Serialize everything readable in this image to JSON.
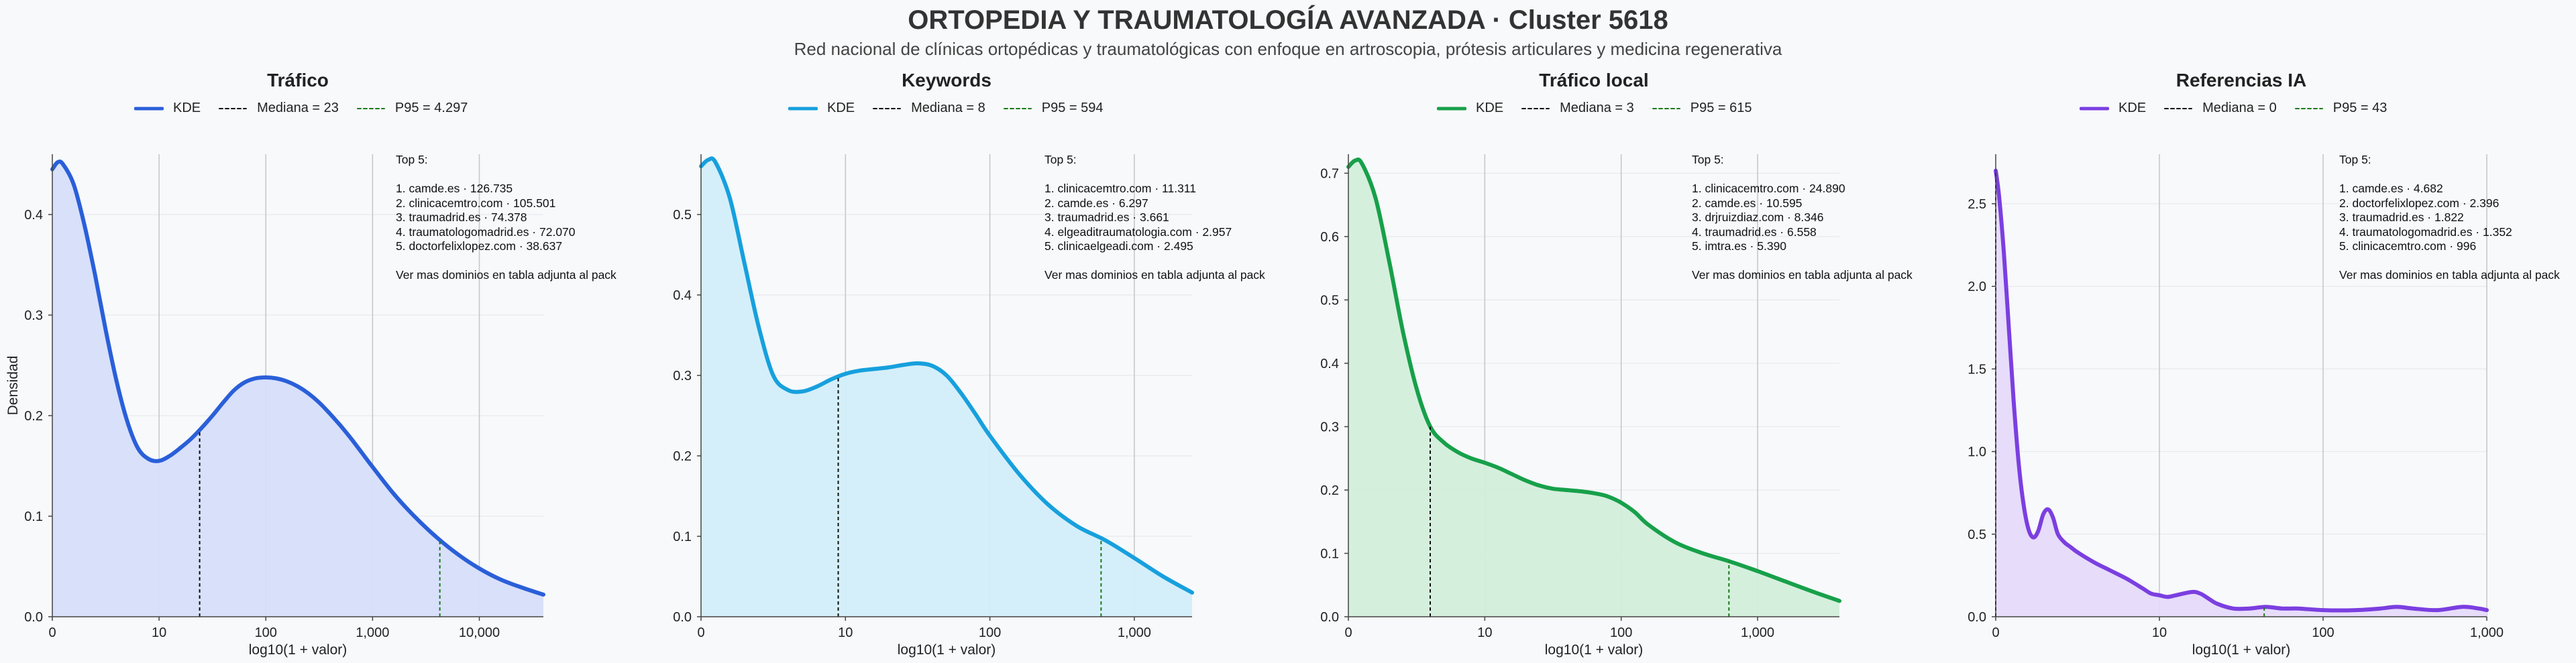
{
  "header": {
    "title": "ORTOPEDIA Y TRAUMATOLOGÍA AVANZADA · Cluster 5618",
    "subtitle": "Red nacional de clínicas ortopédicas y traumatológicas con enfoque en artroscopia, prótesis articulares y medicina regenerativa"
  },
  "legend_kde": "KDE",
  "x_axis_label": "log10(1 + valor)",
  "y_axis_label": "Densidad",
  "top_header": "Top 5:",
  "top_footer": "Ver mas dominios en tabla adjunta al pack",
  "chart_data": [
    {
      "type": "area",
      "title": "Tráfico",
      "color": "#2a5fd9",
      "fill": "#d6defa",
      "xlabel": "log10(1 + valor)",
      "ylabel": "Densidad",
      "xlim": [
        0,
        4.6
      ],
      "ylim": [
        0,
        0.46
      ],
      "x_ticks": [
        0,
        1,
        2,
        3,
        4
      ],
      "x_tick_labels": [
        "0",
        "10",
        "100",
        "1,000",
        "10,000"
      ],
      "y_ticks": [
        0,
        0.1,
        0.2,
        0.3,
        0.4
      ],
      "y_tick_labels": [
        "0.0",
        "0.1",
        "0.2",
        "0.3",
        "0.4"
      ],
      "median_label": "Mediana = 23",
      "p95_label": "P95 = 4.297",
      "median_x": 1.38,
      "p95_x": 3.63,
      "kde": [
        [
          0,
          0.445
        ],
        [
          0.05,
          0.452
        ],
        [
          0.1,
          0.45
        ],
        [
          0.2,
          0.43
        ],
        [
          0.3,
          0.39
        ],
        [
          0.4,
          0.34
        ],
        [
          0.5,
          0.285
        ],
        [
          0.6,
          0.235
        ],
        [
          0.7,
          0.195
        ],
        [
          0.8,
          0.168
        ],
        [
          0.9,
          0.157
        ],
        [
          1.0,
          0.155
        ],
        [
          1.1,
          0.16
        ],
        [
          1.2,
          0.168
        ],
        [
          1.3,
          0.177
        ],
        [
          1.4,
          0.188
        ],
        [
          1.5,
          0.2
        ],
        [
          1.6,
          0.213
        ],
        [
          1.7,
          0.225
        ],
        [
          1.8,
          0.233
        ],
        [
          1.9,
          0.237
        ],
        [
          2.0,
          0.238
        ],
        [
          2.1,
          0.237
        ],
        [
          2.2,
          0.234
        ],
        [
          2.3,
          0.229
        ],
        [
          2.4,
          0.222
        ],
        [
          2.5,
          0.213
        ],
        [
          2.6,
          0.202
        ],
        [
          2.7,
          0.19
        ],
        [
          2.8,
          0.177
        ],
        [
          2.9,
          0.163
        ],
        [
          3.0,
          0.149
        ],
        [
          3.2,
          0.122
        ],
        [
          3.4,
          0.099
        ],
        [
          3.6,
          0.079
        ],
        [
          3.8,
          0.062
        ],
        [
          4.0,
          0.048
        ],
        [
          4.2,
          0.037
        ],
        [
          4.4,
          0.029
        ],
        [
          4.6,
          0.022
        ]
      ],
      "top5": [
        "1. camde.es · 126.735",
        "2. clinicacemtro.com · 105.501",
        "3. traumadrid.es · 74.378",
        "4. traumatologomadrid.es · 72.070",
        "5. doctorfelixlopez.com · 38.637"
      ]
    },
    {
      "type": "area",
      "title": "Keywords",
      "color": "#17a0dd",
      "fill": "#d2eefa",
      "xlabel": "log10(1 + valor)",
      "ylabel": "",
      "xlim": [
        0,
        3.4
      ],
      "ylim": [
        0,
        0.575
      ],
      "x_ticks": [
        0,
        1,
        2,
        3
      ],
      "x_tick_labels": [
        "0",
        "10",
        "100",
        "1,000"
      ],
      "y_ticks": [
        0,
        0.1,
        0.2,
        0.3,
        0.4,
        0.5
      ],
      "y_tick_labels": [
        "0.0",
        "0.1",
        "0.2",
        "0.3",
        "0.4",
        "0.5"
      ],
      "median_label": "Mediana = 8",
      "p95_label": "P95 = 594",
      "median_x": 0.95,
      "p95_x": 2.77,
      "kde": [
        [
          0,
          0.56
        ],
        [
          0.05,
          0.568
        ],
        [
          0.1,
          0.565
        ],
        [
          0.2,
          0.52
        ],
        [
          0.3,
          0.44
        ],
        [
          0.4,
          0.36
        ],
        [
          0.5,
          0.3
        ],
        [
          0.6,
          0.282
        ],
        [
          0.7,
          0.28
        ],
        [
          0.8,
          0.286
        ],
        [
          0.9,
          0.295
        ],
        [
          1.0,
          0.302
        ],
        [
          1.1,
          0.306
        ],
        [
          1.2,
          0.308
        ],
        [
          1.3,
          0.31
        ],
        [
          1.4,
          0.313
        ],
        [
          1.5,
          0.315
        ],
        [
          1.6,
          0.312
        ],
        [
          1.7,
          0.3
        ],
        [
          1.8,
          0.278
        ],
        [
          1.9,
          0.252
        ],
        [
          2.0,
          0.225
        ],
        [
          2.2,
          0.178
        ],
        [
          2.4,
          0.14
        ],
        [
          2.6,
          0.113
        ],
        [
          2.8,
          0.095
        ],
        [
          3.0,
          0.073
        ],
        [
          3.2,
          0.05
        ],
        [
          3.4,
          0.03
        ]
      ],
      "top5": [
        "1. clinicacemtro.com · 11.311",
        "2. camde.es · 6.297",
        "3. traumadrid.es · 3.661",
        "4. elgeaditraumatologia.com · 2.957",
        "5. clinicaelgeadi.com · 2.495"
      ]
    },
    {
      "type": "area",
      "title": "Tráfico local",
      "color": "#17a04a",
      "fill": "#d3eedb",
      "xlabel": "log10(1 + valor)",
      "ylabel": "",
      "xlim": [
        0,
        3.6
      ],
      "ylim": [
        0,
        0.73
      ],
      "x_ticks": [
        0,
        1,
        2,
        3
      ],
      "x_tick_labels": [
        "0",
        "10",
        "100",
        "1,000"
      ],
      "y_ticks": [
        0,
        0.1,
        0.2,
        0.3,
        0.4,
        0.5,
        0.6,
        0.7
      ],
      "y_tick_labels": [
        "0.0",
        "0.1",
        "0.2",
        "0.3",
        "0.4",
        "0.5",
        "0.6",
        "0.7"
      ],
      "median_label": "Mediana = 3",
      "p95_label": "P95 = 615",
      "median_x": 0.6,
      "p95_x": 2.79,
      "kde": [
        [
          0,
          0.71
        ],
        [
          0.05,
          0.72
        ],
        [
          0.1,
          0.715
        ],
        [
          0.2,
          0.66
        ],
        [
          0.3,
          0.56
        ],
        [
          0.4,
          0.45
        ],
        [
          0.5,
          0.36
        ],
        [
          0.6,
          0.3
        ],
        [
          0.7,
          0.275
        ],
        [
          0.8,
          0.26
        ],
        [
          0.9,
          0.25
        ],
        [
          1.0,
          0.243
        ],
        [
          1.1,
          0.235
        ],
        [
          1.2,
          0.225
        ],
        [
          1.3,
          0.215
        ],
        [
          1.4,
          0.207
        ],
        [
          1.5,
          0.202
        ],
        [
          1.6,
          0.2
        ],
        [
          1.7,
          0.198
        ],
        [
          1.8,
          0.195
        ],
        [
          1.9,
          0.19
        ],
        [
          2.0,
          0.18
        ],
        [
          2.1,
          0.165
        ],
        [
          2.2,
          0.145
        ],
        [
          2.4,
          0.117
        ],
        [
          2.6,
          0.1
        ],
        [
          2.8,
          0.087
        ],
        [
          3.0,
          0.072
        ],
        [
          3.2,
          0.056
        ],
        [
          3.4,
          0.04
        ],
        [
          3.6,
          0.025
        ]
      ],
      "top5": [
        "1. clinicacemtro.com · 24.890",
        "2. camde.es · 10.595",
        "3. drjruizdiaz.com · 8.346",
        "4. traumadrid.es · 6.558",
        "5. imtra.es · 5.390"
      ]
    },
    {
      "type": "area",
      "title": "Referencias IA",
      "color": "#7b3fe0",
      "fill": "#e6dafa",
      "xlabel": "log10(1 + valor)",
      "ylabel": "",
      "xlim": [
        0,
        3.0
      ],
      "ylim": [
        0,
        2.8
      ],
      "x_ticks": [
        0,
        1,
        2,
        3
      ],
      "x_tick_labels": [
        "0",
        "10",
        "100",
        "1,000"
      ],
      "y_ticks": [
        0,
        0.5,
        1.0,
        1.5,
        2.0,
        2.5
      ],
      "y_tick_labels": [
        "0.0",
        "0.5",
        "1.0",
        "1.5",
        "2.0",
        "2.5"
      ],
      "median_label": "Mediana = 0",
      "p95_label": "P95 = 43",
      "median_x": 0,
      "p95_x": 1.64,
      "kde": [
        [
          0,
          2.7
        ],
        [
          0.02,
          2.55
        ],
        [
          0.05,
          2.2
        ],
        [
          0.08,
          1.75
        ],
        [
          0.11,
          1.3
        ],
        [
          0.14,
          0.93
        ],
        [
          0.17,
          0.68
        ],
        [
          0.2,
          0.53
        ],
        [
          0.23,
          0.48
        ],
        [
          0.26,
          0.52
        ],
        [
          0.29,
          0.62
        ],
        [
          0.32,
          0.65
        ],
        [
          0.35,
          0.6
        ],
        [
          0.38,
          0.5
        ],
        [
          0.42,
          0.45
        ],
        [
          0.46,
          0.42
        ],
        [
          0.5,
          0.39
        ],
        [
          0.6,
          0.33
        ],
        [
          0.7,
          0.28
        ],
        [
          0.8,
          0.23
        ],
        [
          0.9,
          0.17
        ],
        [
          0.95,
          0.14
        ],
        [
          1.0,
          0.13
        ],
        [
          1.05,
          0.12
        ],
        [
          1.1,
          0.13
        ],
        [
          1.2,
          0.15
        ],
        [
          1.25,
          0.14
        ],
        [
          1.3,
          0.11
        ],
        [
          1.35,
          0.08
        ],
        [
          1.45,
          0.05
        ],
        [
          1.55,
          0.05
        ],
        [
          1.65,
          0.06
        ],
        [
          1.75,
          0.05
        ],
        [
          1.85,
          0.05
        ],
        [
          2.0,
          0.04
        ],
        [
          2.2,
          0.04
        ],
        [
          2.35,
          0.05
        ],
        [
          2.45,
          0.06
        ],
        [
          2.55,
          0.05
        ],
        [
          2.7,
          0.04
        ],
        [
          2.85,
          0.06
        ],
        [
          2.95,
          0.05
        ],
        [
          3.0,
          0.04
        ]
      ],
      "top5": [
        "1. camde.es · 4.682",
        "2. doctorfelixlopez.com · 2.396",
        "3. traumadrid.es · 1.822",
        "4. traumatologomadrid.es · 1.352",
        "5. clinicacemtro.com · 996"
      ]
    }
  ]
}
